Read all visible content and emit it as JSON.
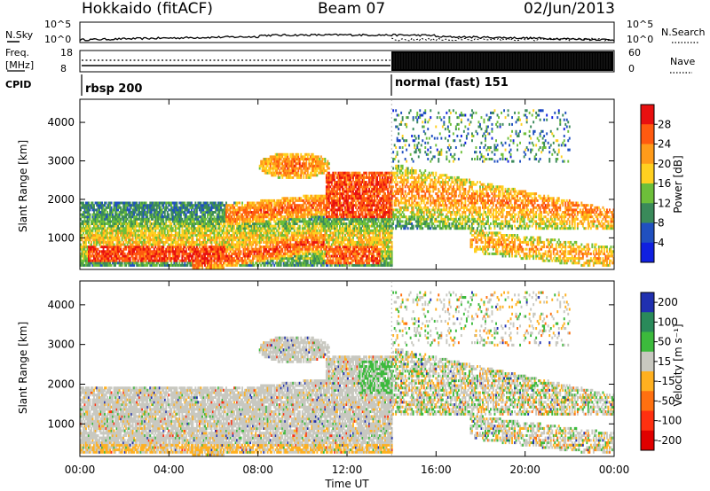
{
  "header": {
    "station": "Hokkaido (fitACF)",
    "beam": "Beam 07",
    "date": "02/Jun/2013"
  },
  "top_panels": {
    "nsky_label": "N.Sky",
    "nsearch_label": "N.Search",
    "nsky_ticks": [
      "10^5",
      "10^0"
    ],
    "nsearch_ticks": [
      "10^5",
      "10^0"
    ],
    "freq_label_1": "Freq.",
    "freq_label_2": "[MHz]",
    "freq_ticks": [
      "18",
      "8"
    ],
    "nave_label": "Nave",
    "nave_ticks": [
      "60",
      "0"
    ],
    "cpid_label": "CPID",
    "cpid_modes": [
      {
        "label": "rbsp 200",
        "start_hour": 0
      },
      {
        "label": "normal (fast) 151",
        "start_hour": 14
      }
    ]
  },
  "chart_data": [
    {
      "type": "heatmap",
      "panel": "power",
      "ylabel": "Slant Range [km]",
      "colorbar_label": "Power [dB]",
      "colorbar_ticks": [
        "28",
        "24",
        "20",
        "16",
        "12",
        "8",
        "4"
      ],
      "colorbar_colors": [
        "#e81010",
        "#ff5a10",
        "#ff9b1a",
        "#ffd020",
        "#6dbf3a",
        "#3a8a5a",
        "#2050c0",
        "#1020e0"
      ],
      "y_ticks": [
        "4000",
        "3000",
        "2000",
        "1000"
      ],
      "ylim": [
        180,
        4600
      ],
      "xlim": [
        0,
        24
      ]
    },
    {
      "type": "heatmap",
      "panel": "velocity",
      "ylabel": "Slant Range [km]",
      "colorbar_label": "Velocity [m s⁻¹]",
      "colorbar_ticks": [
        "200",
        "100",
        "50",
        "15",
        "-15",
        "-50",
        "-100",
        "-200"
      ],
      "colorbar_colors": [
        "#2030b0",
        "#2a8a5a",
        "#3cba3c",
        "#c8c8c0",
        "#ffb020",
        "#ff7010",
        "#ff3010",
        "#e00000"
      ],
      "y_ticks": [
        "4000",
        "3000",
        "2000",
        "1000"
      ],
      "ylim": [
        180,
        4600
      ],
      "xlim": [
        0,
        24
      ]
    }
  ],
  "x_axis": {
    "label": "Time UT",
    "ticks": [
      "00:00",
      "04:00",
      "08:00",
      "12:00",
      "16:00",
      "20:00",
      "00:00"
    ]
  }
}
